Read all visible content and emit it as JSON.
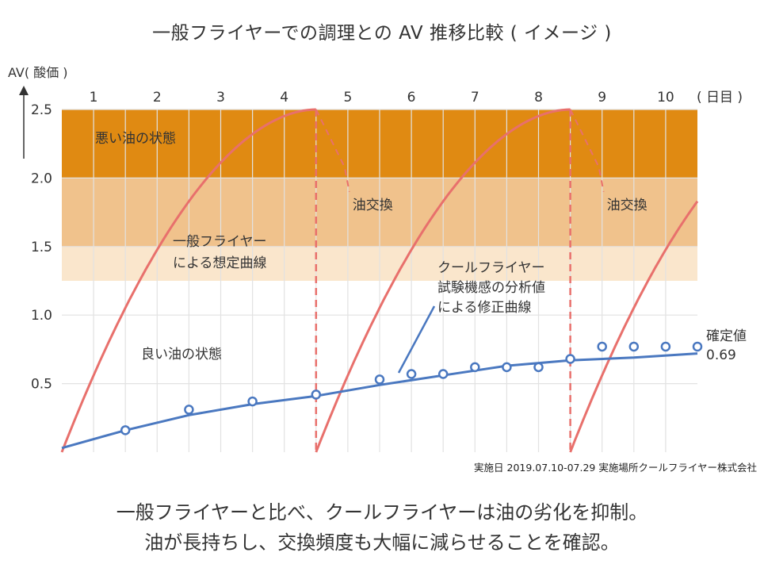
{
  "chart_data": {
    "type": "line",
    "title": "一般フライヤーでの調理との AV 推移比較 ( イメージ )",
    "ylabel": "AV( 酸価 )",
    "xlabel": "( 日目 )",
    "categories": [
      "1",
      "2",
      "3",
      "4",
      "5",
      "6",
      "7",
      "8",
      "9",
      "10"
    ],
    "x_range": [
      0,
      10
    ],
    "ylim": [
      0,
      2.5
    ],
    "yticks": [
      {
        "value": 0.5,
        "label": "0.5"
      },
      {
        "value": 1.0,
        "label": "1.0"
      },
      {
        "value": 1.5,
        "label": "1.5"
      },
      {
        "value": 2.0,
        "label": "2.0"
      },
      {
        "value": 2.5,
        "label": "2.5"
      }
    ],
    "bands": [
      {
        "from": 2.0,
        "to": 2.5,
        "color": "#e08a12",
        "label": "悪い油の状態"
      },
      {
        "from": 1.5,
        "to": 2.0,
        "color": "#f0c28c",
        "label": ""
      },
      {
        "from": 1.25,
        "to": 1.5,
        "color": "#fae6cc",
        "label": ""
      },
      {
        "from": 0,
        "to": 1.25,
        "color": "#ffffff",
        "label": "良い油の状態"
      }
    ],
    "band_label_good": "良い油の状態",
    "series": [
      {
        "name": "一般フライヤーによる想定曲線",
        "label_lines": [
          "一般フライヤー",
          "による想定曲線"
        ],
        "color": "#e8706c",
        "segments": [
          {
            "x0": 0,
            "x1": 4,
            "y0": 0,
            "y1": 2.5
          },
          {
            "x0": 4,
            "x1": 8,
            "y0": 0,
            "y1": 2.5
          },
          {
            "x0": 8,
            "x1": 10,
            "y0": 0,
            "y1": 1.8
          }
        ],
        "oil_change_x": [
          4,
          8
        ],
        "oil_change_label": "油交換"
      },
      {
        "name": "クールフライヤー試験機感の分析値による修正曲線",
        "label_lines": [
          "クールフライヤー",
          "試験機感の分析値",
          "による修正曲線"
        ],
        "color": "#4a78c0",
        "x": [
          0,
          1,
          2,
          3,
          4,
          5,
          6,
          7,
          8,
          9,
          10
        ],
        "values": [
          0.03,
          0.16,
          0.27,
          0.35,
          0.41,
          0.49,
          0.56,
          0.63,
          0.67,
          0.69,
          0.72
        ]
      }
    ],
    "measured_points": {
      "name": "分析値",
      "x": [
        1,
        2,
        3,
        4,
        5,
        5.5,
        6,
        6.5,
        7,
        7.5,
        8,
        8.5,
        9,
        9.5,
        10
      ],
      "values": [
        0.16,
        0.31,
        0.37,
        0.42,
        0.53,
        0.57,
        0.57,
        0.62,
        0.62,
        0.62,
        0.68,
        0.77,
        0.77,
        0.77,
        0.77
      ]
    },
    "annotations": {
      "final_label": "確定値",
      "final_value": "0.69"
    }
  },
  "source_note": "実施日 2019.07.10-07.29 実施場所クールフライヤー株式会社",
  "footer": {
    "line1": "一般フライヤーと比べ、クールフライヤーは油の劣化を抑制。",
    "line2": "油が長持ちし、交換頻度も大幅に減らせることを確認。"
  }
}
